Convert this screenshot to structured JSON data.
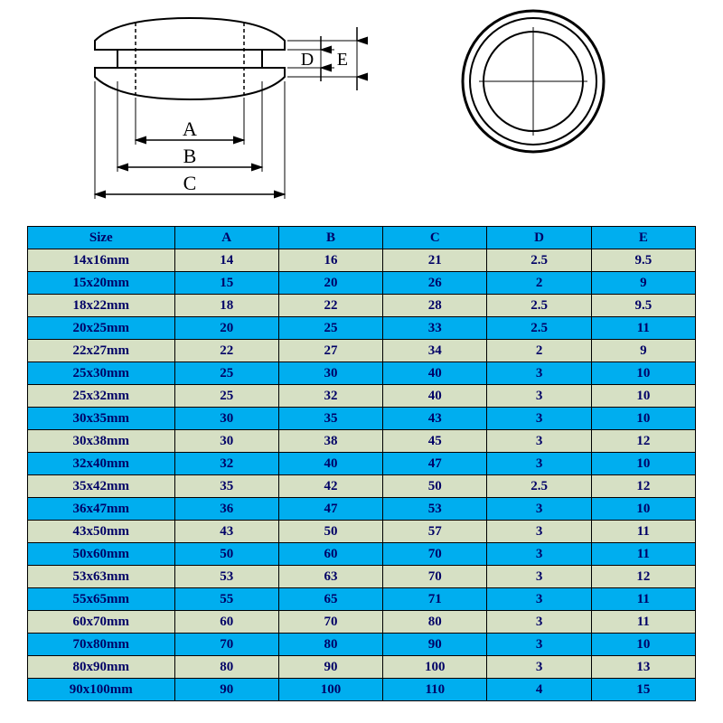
{
  "diagram": {
    "labels": {
      "A": "A",
      "B": "B",
      "C": "C",
      "D": "D",
      "E": "E"
    },
    "stroke_color": "#000000",
    "stroke_width": 2,
    "fill_color": "#ffffff",
    "label_fontsize": 22,
    "label_fontfamily": "Times New Roman, serif"
  },
  "table": {
    "header_bg": "#00aeef",
    "header_fg": "#000066",
    "row_alt_bg": "#d6e0c4",
    "row_bg": "#00aeef",
    "cell_fg": "#000066",
    "border_color": "#000000",
    "font_family": "Times New Roman, serif",
    "font_size": 15,
    "columns": [
      "Size",
      "A",
      "B",
      "C",
      "D",
      "E"
    ],
    "col_widths": [
      "22%",
      "15.6%",
      "15.6%",
      "15.6%",
      "15.6%",
      "15.6%"
    ],
    "rows": [
      [
        "14x16mm",
        "14",
        "16",
        "21",
        "2.5",
        "9.5"
      ],
      [
        "15x20mm",
        "15",
        "20",
        "26",
        "2",
        "9"
      ],
      [
        "18x22mm",
        "18",
        "22",
        "28",
        "2.5",
        "9.5"
      ],
      [
        "20x25mm",
        "20",
        "25",
        "33",
        "2.5",
        "11"
      ],
      [
        "22x27mm",
        "22",
        "27",
        "34",
        "2",
        "9"
      ],
      [
        "25x30mm",
        "25",
        "30",
        "40",
        "3",
        "10"
      ],
      [
        "25x32mm",
        "25",
        "32",
        "40",
        "3",
        "10"
      ],
      [
        "30x35mm",
        "30",
        "35",
        "43",
        "3",
        "10"
      ],
      [
        "30x38mm",
        "30",
        "38",
        "45",
        "3",
        "12"
      ],
      [
        "32x40mm",
        "32",
        "40",
        "47",
        "3",
        "10"
      ],
      [
        "35x42mm",
        "35",
        "42",
        "50",
        "2.5",
        "12"
      ],
      [
        "36x47mm",
        "36",
        "47",
        "53",
        "3",
        "10"
      ],
      [
        "43x50mm",
        "43",
        "50",
        "57",
        "3",
        "11"
      ],
      [
        "50x60mm",
        "50",
        "60",
        "70",
        "3",
        "11"
      ],
      [
        "53x63mm",
        "53",
        "63",
        "70",
        "3",
        "12"
      ],
      [
        "55x65mm",
        "55",
        "65",
        "71",
        "3",
        "11"
      ],
      [
        "60x70mm",
        "60",
        "70",
        "80",
        "3",
        "11"
      ],
      [
        "70x80mm",
        "70",
        "80",
        "90",
        "3",
        "10"
      ],
      [
        "80x90mm",
        "80",
        "90",
        "100",
        "3",
        "13"
      ],
      [
        "90x100mm",
        "90",
        "100",
        "110",
        "4",
        "15"
      ]
    ]
  }
}
